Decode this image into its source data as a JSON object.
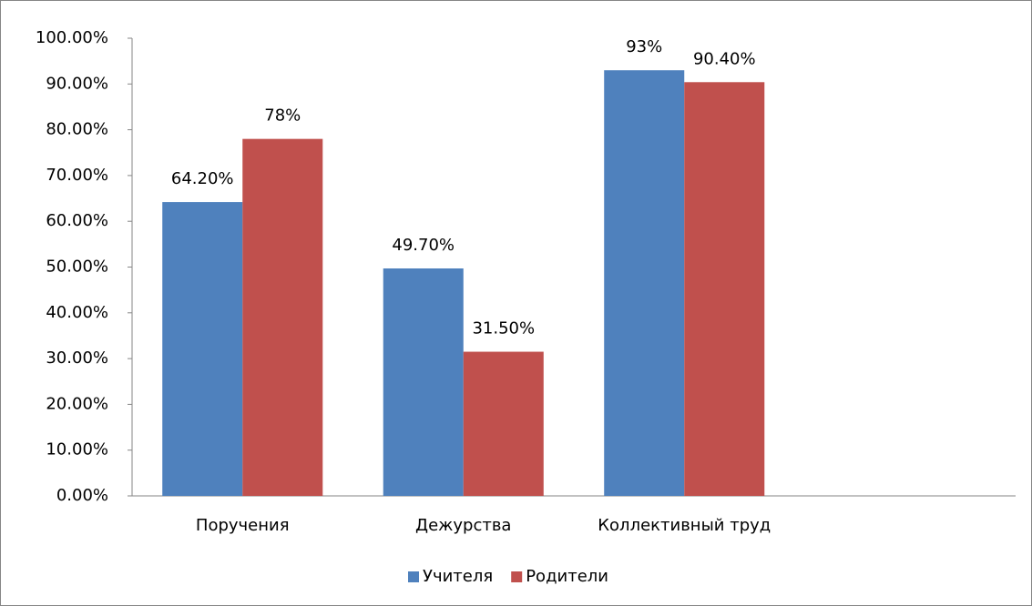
{
  "chart_data": {
    "type": "bar",
    "categories": [
      "Поручения",
      "Дежурства",
      "Коллективный труд",
      null
    ],
    "series": [
      {
        "name": "Учителя",
        "color": "#4f81bd",
        "values": [
          64.2,
          49.7,
          93,
          null
        ],
        "value_labels": [
          "64.20%",
          "49.70%",
          "93%",
          null
        ]
      },
      {
        "name": "Родители",
        "color": "#c0504d",
        "values": [
          78,
          31.5,
          90.4,
          null
        ],
        "value_labels": [
          "78%",
          "31.50%",
          "90.40%",
          null
        ]
      }
    ],
    "ylim": [
      0,
      100
    ],
    "yticks": [
      {
        "value": 0,
        "label": "0.00%"
      },
      {
        "value": 10,
        "label": "10.00%"
      },
      {
        "value": 20,
        "label": "20.00%"
      },
      {
        "value": 30,
        "label": "30.00%"
      },
      {
        "value": 40,
        "label": "40.00%"
      },
      {
        "value": 50,
        "label": "50.00%"
      },
      {
        "value": 60,
        "label": "60.00%"
      },
      {
        "value": 70,
        "label": "70.00%"
      },
      {
        "value": 80,
        "label": "80.00%"
      },
      {
        "value": 90,
        "label": "90.00%"
      },
      {
        "value": 100,
        "label": "100.00%"
      }
    ],
    "grid": false,
    "legend": "bottom"
  }
}
